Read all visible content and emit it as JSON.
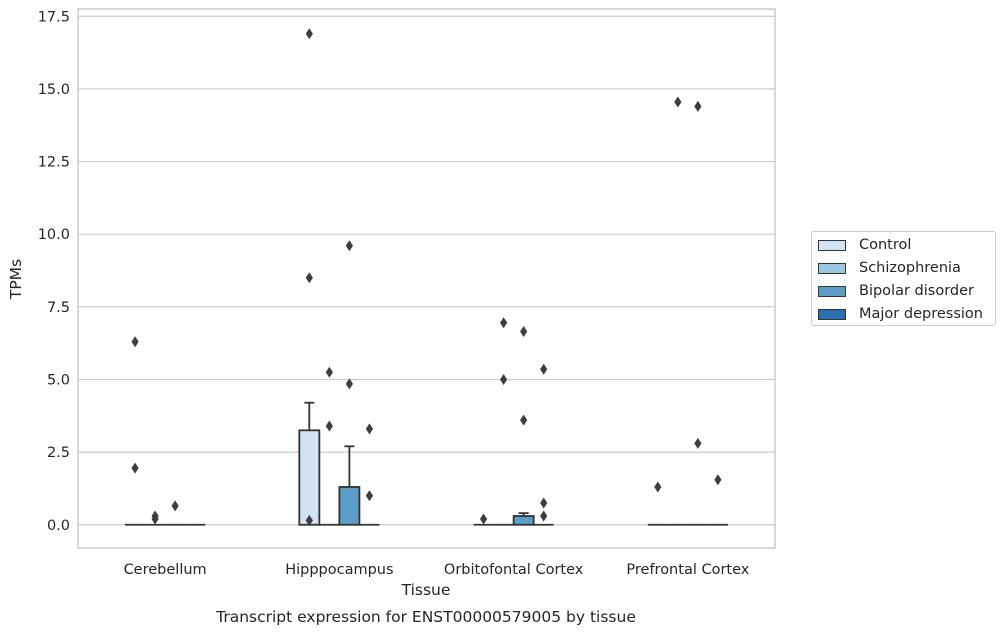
{
  "chart_data": {
    "type": "bar",
    "title": "Transcript expression for ENST00000579005 by tissue",
    "xlabel": "Tissue",
    "ylabel": "TPMs",
    "ylim": [
      -0.8,
      17.75
    ],
    "yticks": [
      "0.0",
      "2.5",
      "5.0",
      "7.5",
      "10.0",
      "12.5",
      "15.0",
      "17.5"
    ],
    "ytick_values": [
      0,
      2.5,
      5,
      7.5,
      10,
      12.5,
      15,
      17.5
    ],
    "categories": [
      "Cerebellum",
      "Hipppocampus",
      "Orbitofontal Cortex",
      "Prefrontal Cortex"
    ],
    "grid": true,
    "legend_position": "right",
    "series": [
      {
        "name": "Control",
        "color": "#d2e3f3",
        "values": [
          0,
          3.25,
          0,
          0
        ],
        "error": [
          null,
          4.2,
          null,
          null
        ],
        "outliers": [
          [
            1.95,
            6.3
          ],
          [
            0.15,
            8.5,
            16.9
          ],
          [
            0.2
          ],
          [
            1.3
          ]
        ]
      },
      {
        "name": "Schizophrenia",
        "color": "#9ac8e0",
        "values": [
          0,
          0,
          0,
          0
        ],
        "error": [
          null,
          null,
          null,
          null
        ],
        "outliers": [
          [
            0.3,
            0.2
          ],
          [
            3.4,
            5.25
          ],
          [
            5.0,
            6.95
          ],
          [
            14.55
          ]
        ]
      },
      {
        "name": "Bipolar disorder",
        "color": "#5a9ec9",
        "values": [
          0,
          1.3,
          0.3,
          0
        ],
        "error": [
          null,
          2.7,
          0.4,
          null
        ],
        "outliers": [
          [
            0.65
          ],
          [
            4.85,
            9.6
          ],
          [
            3.6,
            6.65
          ],
          [
            2.8,
            14.4
          ]
        ]
      },
      {
        "name": "Major depression",
        "color": "#2c6fb0",
        "values": [
          0,
          0,
          0,
          0
        ],
        "error": [
          null,
          null,
          null,
          null
        ],
        "outliers": [
          [],
          [
            1.0,
            3.3
          ],
          [
            0.3,
            0.75,
            5.35
          ],
          [
            1.55
          ]
        ]
      }
    ]
  }
}
